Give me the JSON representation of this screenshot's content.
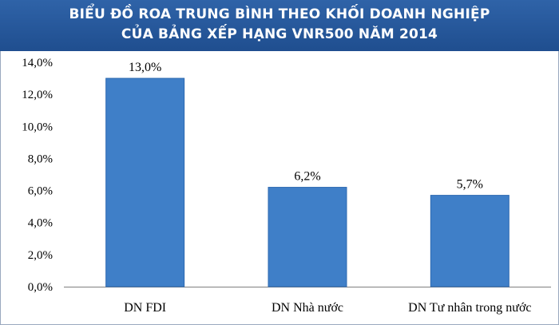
{
  "title": {
    "line1": "BIỂU ĐỒ ROA TRUNG BÌNH THEO KHỐI DOANH NGHIỆP",
    "line2": "CỦA BẢNG XẾP HẠNG VNR500 NĂM 2014"
  },
  "colors": {
    "bar": "#3f7fc8",
    "bar_edge": "#2e6ab1",
    "title_bg": "#2a5ea3"
  },
  "chart_data": {
    "type": "bar",
    "title": "BIỂU ĐỒ ROA TRUNG BÌNH THEO KHỐI DOANH NGHIỆP CỦA BẢNG XẾP HẠNG VNR500 NĂM 2014",
    "categories": [
      "DN FDI",
      "DN Nhà nước",
      "DN Tư nhân trong nước"
    ],
    "values": [
      13.0,
      6.2,
      5.7
    ],
    "value_labels": [
      "13,0%",
      "6,2%",
      "5,7%"
    ],
    "xlabel": "",
    "ylabel": "",
    "ylim": [
      0,
      14
    ],
    "yticks": [
      0,
      2,
      4,
      6,
      8,
      10,
      12,
      14
    ],
    "ytick_labels": [
      "0,0%",
      "2,0%",
      "4,0%",
      "6,0%",
      "8,0%",
      "10,0%",
      "12,0%",
      "14,0%"
    ],
    "grid": false,
    "legend": "none"
  }
}
